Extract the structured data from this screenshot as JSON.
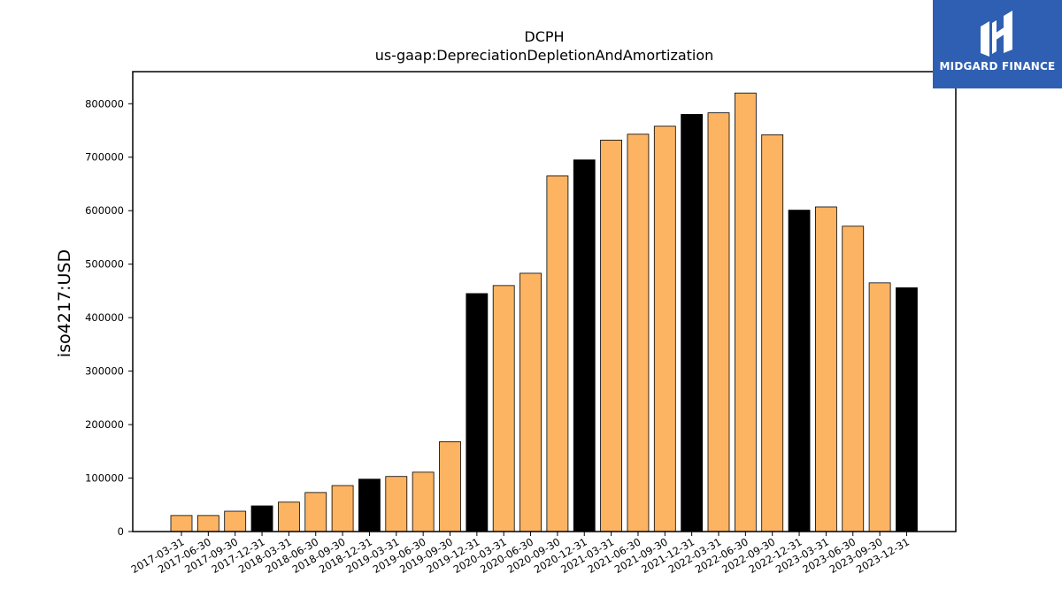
{
  "logo": {
    "name": "MIDGARD FINANCE"
  },
  "chart_data": {
    "type": "bar",
    "title": "DCPH",
    "subtitle": "us-gaap:DepreciationDepletionAndAmortization",
    "xlabel": "",
    "ylabel": "iso4217:USD",
    "ylim": [
      0,
      860000
    ],
    "yticks": [
      0,
      100000,
      200000,
      300000,
      400000,
      500000,
      600000,
      700000,
      800000
    ],
    "grid": false,
    "colors": {
      "quarter": "#fdb462",
      "year_end": "#000000",
      "edge": "#000000"
    },
    "categories": [
      "2017-03-31",
      "2017-06-30",
      "2017-09-30",
      "2017-12-31",
      "2018-03-31",
      "2018-06-30",
      "2018-09-30",
      "2018-12-31",
      "2019-03-31",
      "2019-06-30",
      "2019-09-30",
      "2019-12-31",
      "2020-03-31",
      "2020-06-30",
      "2020-09-30",
      "2020-12-31",
      "2021-03-31",
      "2021-06-30",
      "2021-09-30",
      "2021-12-31",
      "2022-03-31",
      "2022-06-30",
      "2022-09-30",
      "2022-12-31",
      "2023-03-31",
      "2023-06-30",
      "2023-09-30",
      "2023-12-31"
    ],
    "values": [
      30000,
      30000,
      38000,
      48000,
      55000,
      73000,
      86000,
      98000,
      103000,
      111000,
      168000,
      445000,
      460000,
      483000,
      665000,
      695000,
      732000,
      743000,
      758000,
      780000,
      783000,
      820000,
      742000,
      601000,
      607000,
      571000,
      465000,
      456000
    ],
    "year_end": [
      false,
      false,
      false,
      true,
      false,
      false,
      false,
      true,
      false,
      false,
      false,
      true,
      false,
      false,
      false,
      true,
      false,
      false,
      false,
      true,
      false,
      false,
      false,
      true,
      false,
      false,
      false,
      true
    ]
  }
}
